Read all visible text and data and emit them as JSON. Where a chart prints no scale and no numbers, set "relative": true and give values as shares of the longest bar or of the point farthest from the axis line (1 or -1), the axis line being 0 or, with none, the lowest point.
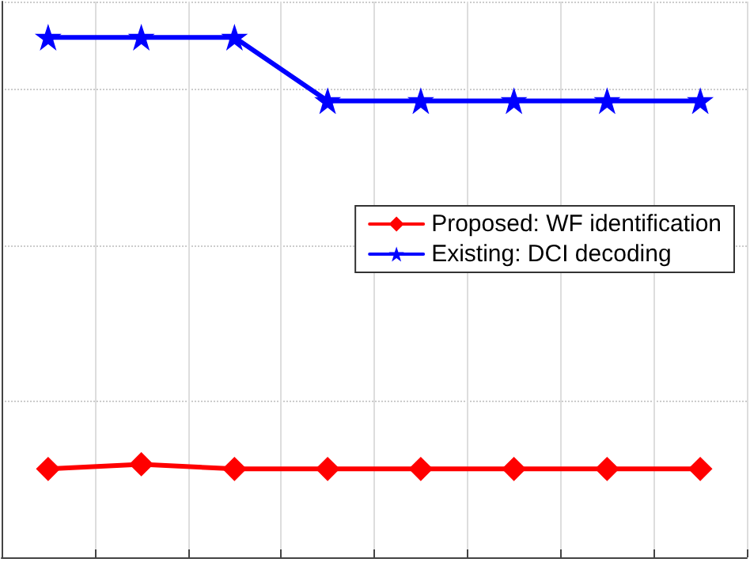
{
  "chart_data": {
    "type": "line",
    "relative": true,
    "categories": [
      null,
      null,
      null,
      null,
      null,
      null,
      null,
      null
    ],
    "series": [
      {
        "name": "Proposed: WF identification",
        "color": "#ff0000",
        "marker": "diamond",
        "values": [
          0.17,
          0.179,
          0.17,
          0.17,
          0.17,
          0.17,
          0.17,
          0.17
        ]
      },
      {
        "name": "Existing: DCI decoding",
        "color": "#0000ff",
        "marker": "star",
        "values": [
          1,
          1,
          1,
          0.878,
          0.878,
          0.878,
          0.878,
          0.878
        ]
      }
    ],
    "grid": true,
    "legend": "top right",
    "line_style": "solid"
  }
}
